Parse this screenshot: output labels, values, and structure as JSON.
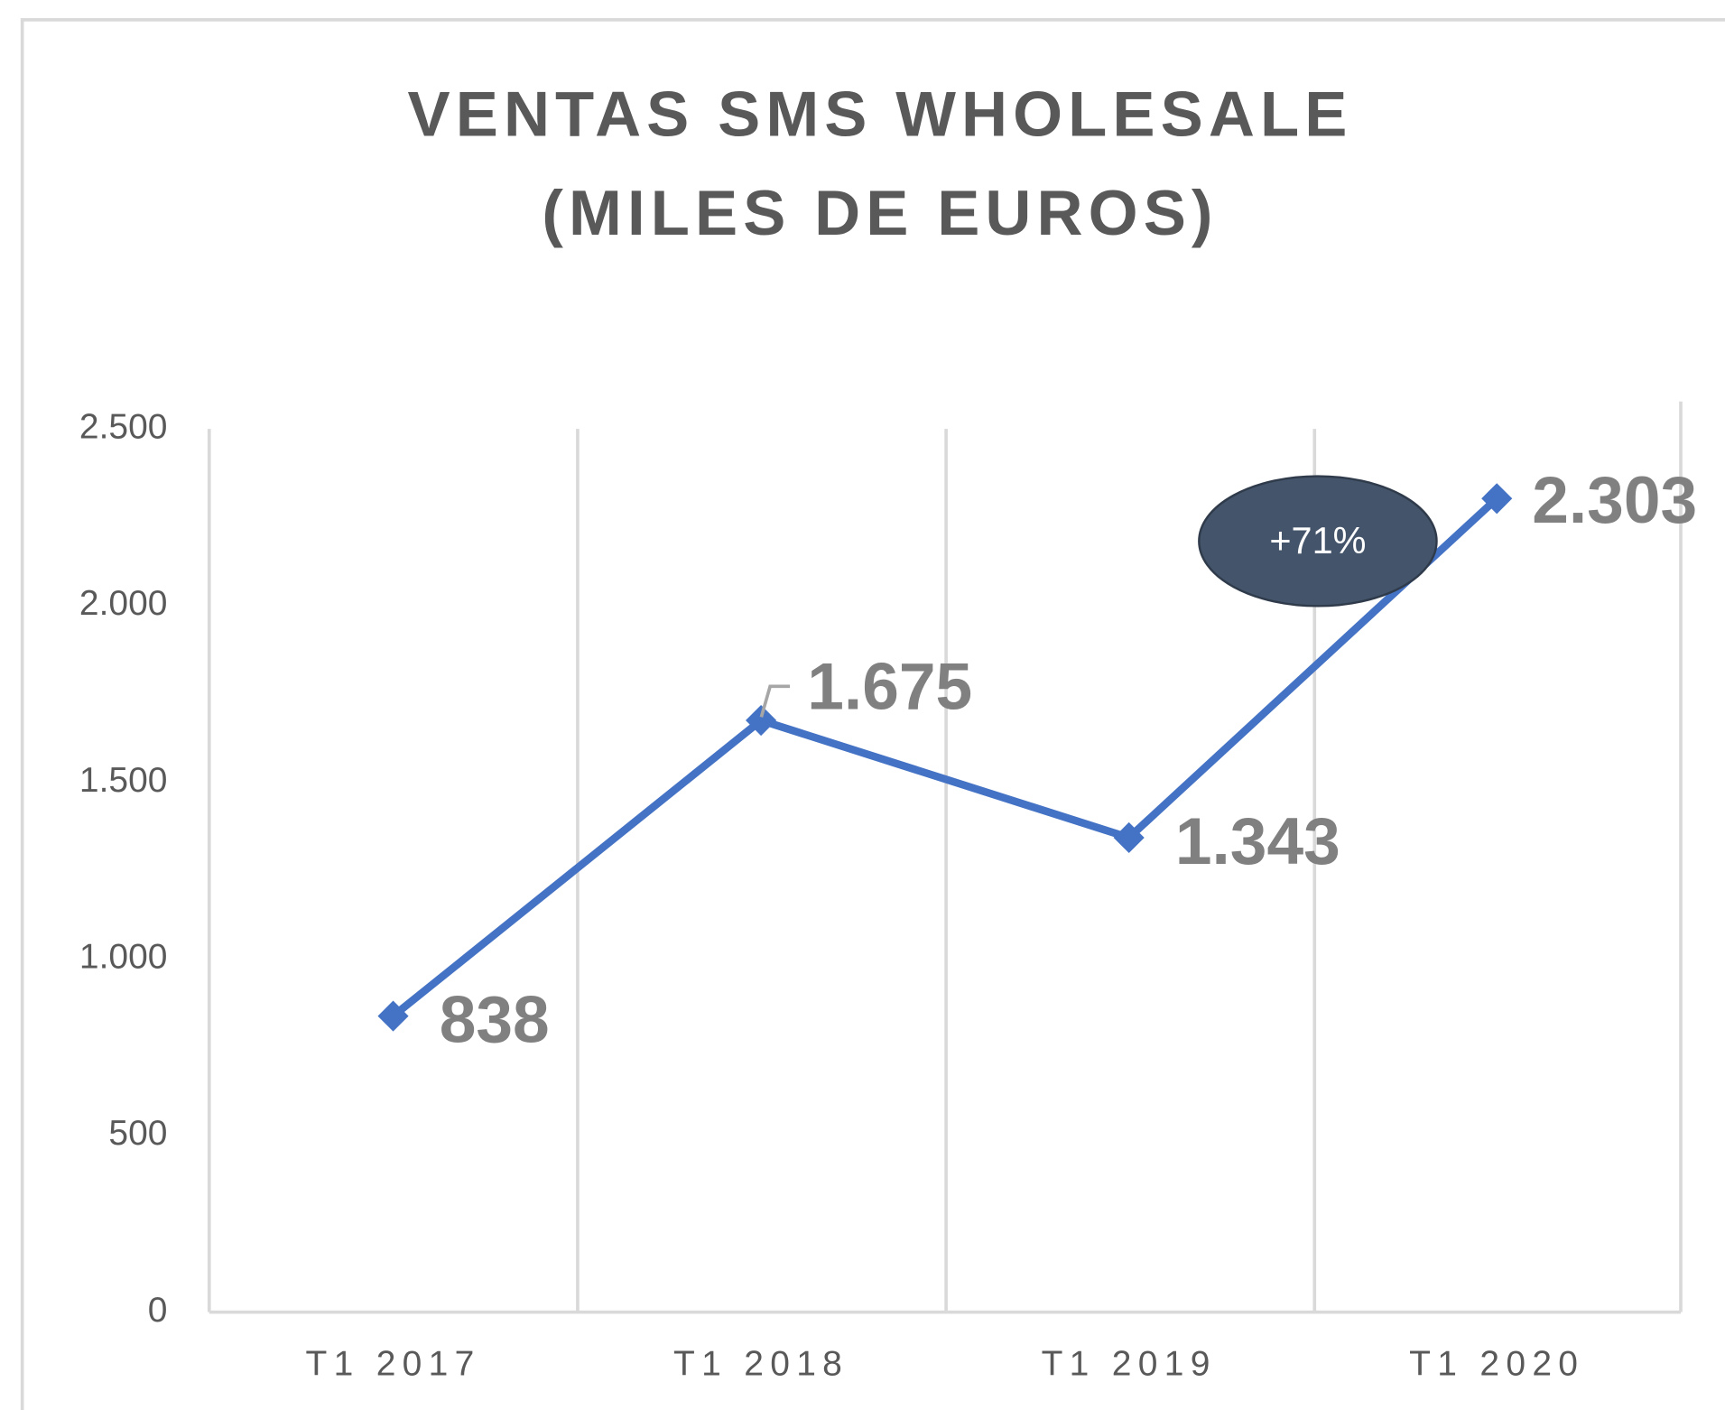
{
  "chart_data": {
    "type": "line",
    "title": [
      "VENTAS SMS WHOLESALE",
      "(MILES DE EUROS)"
    ],
    "categories": [
      "T1 2017",
      "T1 2018",
      "T1 2019",
      "T1 2020"
    ],
    "series": [
      {
        "name": "Ventas",
        "color": "#4472c4",
        "values": [
          838,
          1675,
          1343,
          2303
        ],
        "value_labels": [
          "838",
          "1.675",
          "1.343",
          "2.303"
        ]
      }
    ],
    "ylim": [
      0,
      2500
    ],
    "yticks": [
      0,
      500,
      {
        "value": 1000,
        "label": "1.000"
      },
      {
        "value": 1500,
        "label": "1.500"
      },
      {
        "value": 2000,
        "label": "2.000"
      },
      {
        "value": 2500,
        "label": "2.500"
      }
    ],
    "grid": false,
    "annotations": [
      "+71%"
    ]
  }
}
